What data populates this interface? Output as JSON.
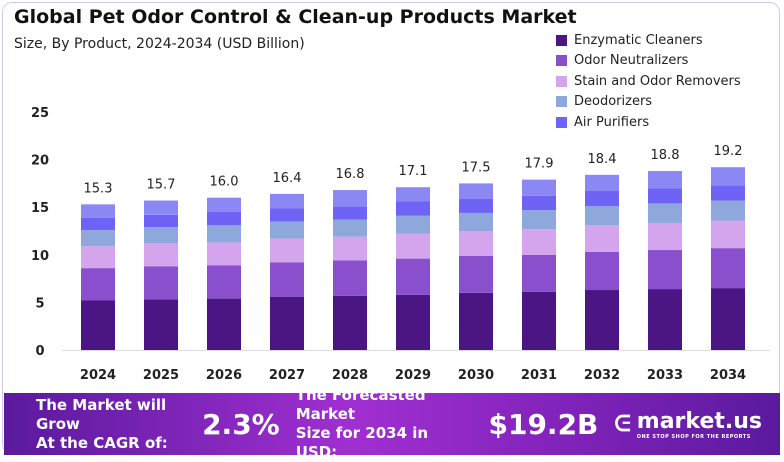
{
  "chart_data": {
    "type": "bar",
    "stacked": true,
    "title": "Global Pet Odor Control & Clean-up Products Market",
    "subtitle": "Size, By Product, 2024-2034 (USD Billion)",
    "categories": [
      "2024",
      "2025",
      "2026",
      "2027",
      "2028",
      "2029",
      "2030",
      "2031",
      "2032",
      "2033",
      "2034"
    ],
    "totals": [
      15.3,
      15.7,
      16.0,
      16.4,
      16.8,
      17.1,
      17.5,
      17.9,
      18.4,
      18.8,
      19.2
    ],
    "total_labels": [
      "15.3",
      "15.7",
      "16.0",
      "16.4",
      "16.8",
      "17.1",
      "17.5",
      "17.9",
      "18.4",
      "18.8",
      "19.2"
    ],
    "series": [
      {
        "name": "Enzymatic Cleaners",
        "color": "#4b1584",
        "values": [
          5.2,
          5.3,
          5.4,
          5.6,
          5.7,
          5.8,
          6.0,
          6.1,
          6.3,
          6.4,
          6.5
        ]
      },
      {
        "name": "Odor Neutralizers",
        "color": "#8a4fcc",
        "values": [
          3.4,
          3.5,
          3.5,
          3.6,
          3.7,
          3.8,
          3.9,
          3.9,
          4.0,
          4.1,
          4.2
        ]
      },
      {
        "name": "Stain and Odor Removers",
        "color": "#d4a5ec",
        "values": [
          2.3,
          2.4,
          2.4,
          2.5,
          2.5,
          2.6,
          2.6,
          2.7,
          2.8,
          2.8,
          2.9
        ]
      },
      {
        "name": "Deodorizers",
        "color": "#8fa8dc",
        "values": [
          1.7,
          1.7,
          1.8,
          1.8,
          1.8,
          1.9,
          1.9,
          2.0,
          2.0,
          2.1,
          2.1
        ]
      },
      {
        "name": "Air Purifiers",
        "color": "#6e63f5",
        "values": [
          1.3,
          1.3,
          1.4,
          1.4,
          1.4,
          1.5,
          1.5,
          1.5,
          1.6,
          1.6,
          1.6
        ]
      },
      {
        "color": "#8c88f3",
        "values": [
          1.4,
          1.5,
          1.5,
          1.5,
          1.7,
          1.5,
          1.6,
          1.7,
          1.7,
          1.8,
          1.9
        ]
      }
    ],
    "yticks": [
      "0",
      "5",
      "10",
      "15",
      "20",
      "25"
    ],
    "ylim": [
      0,
      25
    ],
    "grid": false,
    "legend": "top-right"
  },
  "footer": {
    "cagr_text_1": "The Market will Grow",
    "cagr_text_2": "At the CAGR of:",
    "cagr": "2.3%",
    "forecast_text_1": "The Forecasted Market",
    "forecast_text_2": "Size for 2034 in USD:",
    "forecast": "$19.2B",
    "logo": "market.us",
    "logo_tagline": "ONE STOP SHOP FOR THE REPORTS"
  }
}
